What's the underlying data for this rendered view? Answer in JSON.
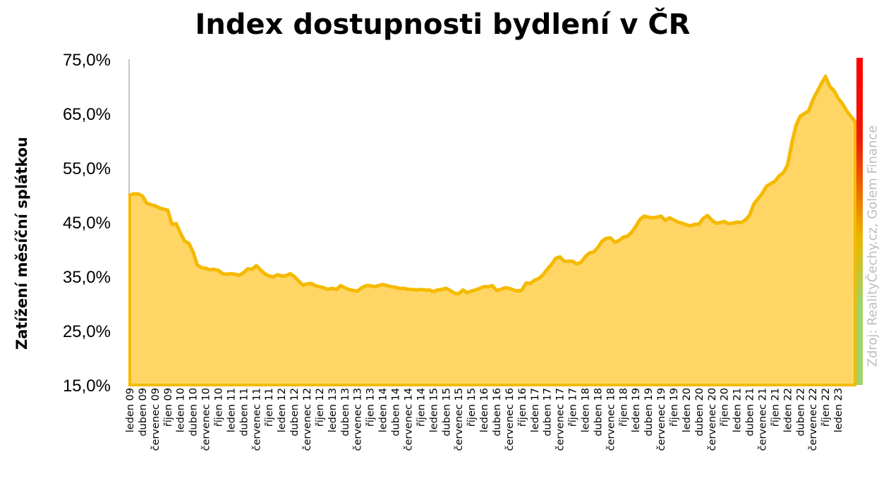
{
  "colors": {
    "area_fill": "#FFD666",
    "line": "#F5BA00",
    "axis": "#8c8c8c",
    "scale_top": "#FF0000",
    "scale_mid": "#E9B800",
    "scale_bottom": "#9ED36A",
    "source_text": "#BDBDBD"
  },
  "source": "Zdroj: RealityČechy.cz, Golem Finance",
  "chart_data": {
    "type": "area",
    "title": "Index dostupnosti bydlení  v ČR",
    "ylabel": "Zatížení měsíční splátkou",
    "xlabel": "",
    "ylim": [
      15,
      75
    ],
    "yticks": [
      "75,0%",
      "65,0%",
      "55,0%",
      "45,0%",
      "35,0%",
      "25,0%",
      "15,0%"
    ],
    "ytick_values": [
      75,
      65,
      55,
      45,
      35,
      25,
      15
    ],
    "grid": false,
    "legend": "none",
    "color_scale_bar": "right edge, red (top) to yellow to green (bottom)",
    "x_start": "leden 09",
    "x_frequency": "monthly",
    "xticks": [
      "leden 09",
      "duben 09",
      "červenec 09",
      "říjen 09",
      "leden 10",
      "duben 10",
      "červenec 10",
      "říjen 10",
      "leden 11",
      "duben 11",
      "červenec 11",
      "říjen 11",
      "leden 12",
      "duben 12",
      "červenec 12",
      "říjen 12",
      "leden 13",
      "duben 13",
      "červenec 13",
      "říjen 13",
      "leden 14",
      "duben 14",
      "červenec 14",
      "říjen 14",
      "leden 15",
      "duben 15",
      "červenec 15",
      "říjen 15",
      "leden 16",
      "duben 16",
      "červenec 16",
      "říjen 16",
      "leden 17",
      "duben 17",
      "červenec 17",
      "říjen 17",
      "leden 18",
      "duben 18",
      "červenec 18",
      "říjen 18",
      "leden 19",
      "duben 19",
      "červenec 19",
      "říjen 19",
      "leden 20",
      "duben 20",
      "červenec 20",
      "říjen 20",
      "leden 21",
      "duben 21",
      "červenec 21",
      "říjen 21",
      "leden 22",
      "duben 22",
      "červenec 22",
      "říjen 22",
      "leden 23"
    ],
    "values": [
      50.0,
      50.2,
      50.2,
      49.8,
      48.5,
      48.2,
      48.0,
      47.6,
      47.4,
      47.2,
      44.6,
      44.7,
      43.0,
      41.5,
      41.1,
      39.5,
      37.1,
      36.6,
      36.5,
      36.2,
      36.3,
      36.1,
      35.5,
      35.4,
      35.5,
      35.4,
      35.2,
      35.7,
      36.4,
      36.3,
      37.0,
      36.2,
      35.5,
      35.1,
      34.9,
      35.3,
      35.1,
      35.1,
      35.5,
      35.0,
      34.2,
      33.4,
      33.6,
      33.7,
      33.3,
      33.1,
      32.9,
      32.6,
      32.8,
      32.6,
      33.3,
      32.9,
      32.6,
      32.4,
      32.3,
      32.9,
      33.3,
      33.3,
      33.1,
      33.3,
      33.5,
      33.3,
      33.1,
      33.0,
      32.8,
      32.8,
      32.6,
      32.6,
      32.5,
      32.6,
      32.5,
      32.5,
      32.2,
      32.5,
      32.6,
      32.8,
      32.4,
      31.9,
      31.8,
      32.5,
      32.0,
      32.3,
      32.5,
      32.8,
      33.1,
      33.1,
      33.3,
      32.4,
      32.6,
      32.9,
      32.8,
      32.5,
      32.3,
      32.5,
      33.8,
      33.7,
      34.3,
      34.6,
      35.3,
      36.3,
      37.2,
      38.3,
      38.6,
      37.8,
      37.8,
      37.8,
      37.3,
      37.6,
      38.6,
      39.3,
      39.5,
      40.3,
      41.5,
      42.0,
      42.1,
      41.3,
      41.6,
      42.2,
      42.4,
      43.1,
      44.2,
      45.5,
      46.1,
      45.9,
      45.8,
      45.9,
      46.1,
      45.3,
      45.8,
      45.4,
      45.0,
      44.8,
      44.5,
      44.3,
      44.6,
      44.6,
      45.7,
      46.2,
      45.4,
      44.8,
      44.9,
      45.1,
      44.7,
      44.8,
      45.0,
      44.9,
      45.4,
      46.3,
      48.3,
      49.3,
      50.3,
      51.6,
      52.1,
      52.5,
      53.5,
      54.1,
      55.5,
      59.5,
      62.8,
      64.5,
      65.0,
      65.5,
      67.5,
      69.0,
      70.5,
      71.8,
      70.0,
      69.2,
      67.8,
      66.8,
      65.5,
      64.5,
      63.5
    ]
  }
}
